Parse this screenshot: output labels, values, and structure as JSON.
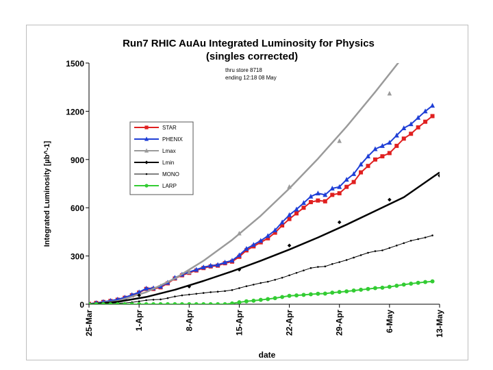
{
  "chart_data": {
    "type": "line",
    "title": "Run7 RHIC AuAu   Integrated Luminosity for Physics",
    "subtitle": "(singles corrected)",
    "annotation": [
      "thru store 8718",
      "ending 12:18  08 May"
    ],
    "xlabel": "date",
    "ylabel": "Integrated Luminosity [µb^-1]",
    "ylim": [
      0,
      1500
    ],
    "yticks": [
      0,
      300,
      600,
      900,
      1200,
      1500
    ],
    "xlim": [
      "2007-03-25",
      "2007-05-13"
    ],
    "xticks": [
      {
        "label": "25-Mar",
        "date": "2007-03-25"
      },
      {
        "label": "1-Apr",
        "date": "2007-04-01"
      },
      {
        "label": "8-Apr",
        "date": "2007-04-08"
      },
      {
        "label": "15-Apr",
        "date": "2007-04-15"
      },
      {
        "label": "22-Apr",
        "date": "2007-04-22"
      },
      {
        "label": "29-Apr",
        "date": "2007-04-29"
      },
      {
        "label": "6-May",
        "date": "2007-05-06"
      },
      {
        "label": "13-May",
        "date": "2007-05-13"
      }
    ],
    "grid": false,
    "legend": "left-middle",
    "series": [
      {
        "name": "STAR",
        "color": "#e02020",
        "marker": "square",
        "lineWidth": 2,
        "points": [
          [
            "2007-03-25",
            2
          ],
          [
            "2007-03-26",
            8
          ],
          [
            "2007-03-27",
            14
          ],
          [
            "2007-03-28",
            20
          ],
          [
            "2007-03-29",
            28
          ],
          [
            "2007-03-30",
            40
          ],
          [
            "2007-03-31",
            55
          ],
          [
            "2007-04-01",
            72
          ],
          [
            "2007-04-02",
            95
          ],
          [
            "2007-04-03",
            95
          ],
          [
            "2007-04-04",
            105
          ],
          [
            "2007-04-05",
            130
          ],
          [
            "2007-04-06",
            160
          ],
          [
            "2007-04-07",
            180
          ],
          [
            "2007-04-08",
            195
          ],
          [
            "2007-04-09",
            210
          ],
          [
            "2007-04-10",
            225
          ],
          [
            "2007-04-11",
            235
          ],
          [
            "2007-04-12",
            240
          ],
          [
            "2007-04-13",
            255
          ],
          [
            "2007-04-14",
            265
          ],
          [
            "2007-04-15",
            295
          ],
          [
            "2007-04-16",
            335
          ],
          [
            "2007-04-17",
            360
          ],
          [
            "2007-04-18",
            385
          ],
          [
            "2007-04-19",
            410
          ],
          [
            "2007-04-20",
            445
          ],
          [
            "2007-04-21",
            490
          ],
          [
            "2007-04-22",
            530
          ],
          [
            "2007-04-23",
            565
          ],
          [
            "2007-04-24",
            600
          ],
          [
            "2007-04-25",
            635
          ],
          [
            "2007-04-26",
            645
          ],
          [
            "2007-04-27",
            640
          ],
          [
            "2007-04-28",
            680
          ],
          [
            "2007-04-29",
            690
          ],
          [
            "2007-04-30",
            730
          ],
          [
            "2007-05-01",
            760
          ],
          [
            "2007-05-02",
            820
          ],
          [
            "2007-05-03",
            860
          ],
          [
            "2007-05-04",
            900
          ],
          [
            "2007-05-05",
            920
          ],
          [
            "2007-05-06",
            940
          ],
          [
            "2007-05-07",
            985
          ],
          [
            "2007-05-08",
            1030
          ],
          [
            "2007-05-09",
            1060
          ],
          [
            "2007-05-10",
            1100
          ],
          [
            "2007-05-11",
            1135
          ],
          [
            "2007-05-12",
            1170
          ]
        ]
      },
      {
        "name": "PHENIX",
        "color": "#1f3fd6",
        "marker": "triangle",
        "lineWidth": 2,
        "points": [
          [
            "2007-03-25",
            2
          ],
          [
            "2007-03-26",
            8
          ],
          [
            "2007-03-27",
            15
          ],
          [
            "2007-03-28",
            22
          ],
          [
            "2007-03-29",
            30
          ],
          [
            "2007-03-30",
            42
          ],
          [
            "2007-03-31",
            58
          ],
          [
            "2007-04-01",
            75
          ],
          [
            "2007-04-02",
            98
          ],
          [
            "2007-04-03",
            100
          ],
          [
            "2007-04-04",
            110
          ],
          [
            "2007-04-05",
            135
          ],
          [
            "2007-04-06",
            165
          ],
          [
            "2007-04-07",
            185
          ],
          [
            "2007-04-08",
            200
          ],
          [
            "2007-04-09",
            215
          ],
          [
            "2007-04-10",
            230
          ],
          [
            "2007-04-11",
            240
          ],
          [
            "2007-04-12",
            245
          ],
          [
            "2007-04-13",
            260
          ],
          [
            "2007-04-14",
            272
          ],
          [
            "2007-04-15",
            305
          ],
          [
            "2007-04-16",
            345
          ],
          [
            "2007-04-17",
            370
          ],
          [
            "2007-04-18",
            395
          ],
          [
            "2007-04-19",
            425
          ],
          [
            "2007-04-20",
            460
          ],
          [
            "2007-04-21",
            510
          ],
          [
            "2007-04-22",
            555
          ],
          [
            "2007-04-23",
            590
          ],
          [
            "2007-04-24",
            630
          ],
          [
            "2007-04-25",
            670
          ],
          [
            "2007-04-26",
            690
          ],
          [
            "2007-04-27",
            680
          ],
          [
            "2007-04-28",
            720
          ],
          [
            "2007-04-29",
            730
          ],
          [
            "2007-04-30",
            775
          ],
          [
            "2007-05-01",
            810
          ],
          [
            "2007-05-02",
            870
          ],
          [
            "2007-05-03",
            920
          ],
          [
            "2007-05-04",
            965
          ],
          [
            "2007-05-05",
            985
          ],
          [
            "2007-05-06",
            1005
          ],
          [
            "2007-05-07",
            1050
          ],
          [
            "2007-05-08",
            1095
          ],
          [
            "2007-05-09",
            1120
          ],
          [
            "2007-05-10",
            1160
          ],
          [
            "2007-05-11",
            1200
          ],
          [
            "2007-05-12",
            1235
          ]
        ]
      },
      {
        "name": "Lmax",
        "color": "#9a9a9a",
        "marker": "triangle",
        "lineWidth": 2.5,
        "marker_points_only": true,
        "curve": [
          [
            "2007-03-25",
            0
          ],
          [
            "2007-03-29",
            20
          ],
          [
            "2007-04-02",
            75
          ],
          [
            "2007-04-06",
            160
          ],
          [
            "2007-04-10",
            270
          ],
          [
            "2007-04-14",
            400
          ],
          [
            "2007-04-18",
            550
          ],
          [
            "2007-04-22",
            720
          ],
          [
            "2007-04-26",
            905
          ],
          [
            "2007-04-30",
            1105
          ],
          [
            "2007-05-04",
            1320
          ],
          [
            "2007-05-08",
            1545
          ]
        ],
        "points": [
          [
            "2007-04-08",
            200
          ],
          [
            "2007-04-15",
            440
          ],
          [
            "2007-04-22",
            730
          ],
          [
            "2007-04-29",
            1015
          ],
          [
            "2007-05-06",
            1310
          ]
        ]
      },
      {
        "name": "Lmin",
        "color": "#000000",
        "marker": "diamond",
        "lineWidth": 2.5,
        "marker_points_only": true,
        "curve": [
          [
            "2007-03-25",
            0
          ],
          [
            "2007-03-29",
            15
          ],
          [
            "2007-04-02",
            45
          ],
          [
            "2007-04-06",
            90
          ],
          [
            "2007-04-10",
            145
          ],
          [
            "2007-04-14",
            205
          ],
          [
            "2007-04-18",
            270
          ],
          [
            "2007-04-22",
            340
          ],
          [
            "2007-04-26",
            415
          ],
          [
            "2007-04-30",
            495
          ],
          [
            "2007-05-04",
            580
          ],
          [
            "2007-05-08",
            665
          ],
          [
            "2007-05-13",
            820
          ]
        ],
        "points": [
          [
            "2007-04-01",
            55
          ],
          [
            "2007-04-08",
            110
          ],
          [
            "2007-04-15",
            215
          ],
          [
            "2007-04-22",
            365
          ],
          [
            "2007-04-29",
            510
          ],
          [
            "2007-05-06",
            650
          ],
          [
            "2007-05-13",
            800
          ]
        ]
      },
      {
        "name": "MONO",
        "color": "#000000",
        "marker": "dot",
        "lineWidth": 1,
        "points": [
          [
            "2007-03-25",
            0
          ],
          [
            "2007-03-26",
            1
          ],
          [
            "2007-03-27",
            2
          ],
          [
            "2007-03-28",
            4
          ],
          [
            "2007-03-29",
            6
          ],
          [
            "2007-03-30",
            8
          ],
          [
            "2007-03-31",
            12
          ],
          [
            "2007-04-01",
            18
          ],
          [
            "2007-04-02",
            25
          ],
          [
            "2007-04-03",
            28
          ],
          [
            "2007-04-04",
            30
          ],
          [
            "2007-04-05",
            38
          ],
          [
            "2007-04-06",
            48
          ],
          [
            "2007-04-07",
            55
          ],
          [
            "2007-04-08",
            60
          ],
          [
            "2007-04-09",
            65
          ],
          [
            "2007-04-10",
            70
          ],
          [
            "2007-04-11",
            75
          ],
          [
            "2007-04-12",
            78
          ],
          [
            "2007-04-13",
            82
          ],
          [
            "2007-04-14",
            88
          ],
          [
            "2007-04-15",
            100
          ],
          [
            "2007-04-16",
            112
          ],
          [
            "2007-04-17",
            122
          ],
          [
            "2007-04-18",
            132
          ],
          [
            "2007-04-19",
            140
          ],
          [
            "2007-04-20",
            152
          ],
          [
            "2007-04-21",
            165
          ],
          [
            "2007-04-22",
            180
          ],
          [
            "2007-04-23",
            195
          ],
          [
            "2007-04-24",
            210
          ],
          [
            "2007-04-25",
            225
          ],
          [
            "2007-04-26",
            232
          ],
          [
            "2007-04-27",
            235
          ],
          [
            "2007-04-28",
            250
          ],
          [
            "2007-04-29",
            262
          ],
          [
            "2007-04-30",
            275
          ],
          [
            "2007-05-01",
            290
          ],
          [
            "2007-05-02",
            305
          ],
          [
            "2007-05-03",
            320
          ],
          [
            "2007-05-04",
            330
          ],
          [
            "2007-05-05",
            335
          ],
          [
            "2007-05-06",
            350
          ],
          [
            "2007-05-07",
            365
          ],
          [
            "2007-05-08",
            380
          ],
          [
            "2007-05-09",
            395
          ],
          [
            "2007-05-10",
            405
          ],
          [
            "2007-05-11",
            415
          ],
          [
            "2007-05-12",
            428
          ]
        ]
      },
      {
        "name": "LARP",
        "color": "#33cc33",
        "marker": "circle",
        "lineWidth": 2,
        "points": [
          [
            "2007-03-25",
            0
          ],
          [
            "2007-03-26",
            0
          ],
          [
            "2007-03-27",
            0
          ],
          [
            "2007-03-28",
            0
          ],
          [
            "2007-03-29",
            0
          ],
          [
            "2007-03-30",
            0
          ],
          [
            "2007-03-31",
            0
          ],
          [
            "2007-04-01",
            0
          ],
          [
            "2007-04-02",
            0
          ],
          [
            "2007-04-03",
            0
          ],
          [
            "2007-04-04",
            0
          ],
          [
            "2007-04-05",
            0
          ],
          [
            "2007-04-06",
            0
          ],
          [
            "2007-04-07",
            0
          ],
          [
            "2007-04-08",
            0
          ],
          [
            "2007-04-09",
            0
          ],
          [
            "2007-04-10",
            0
          ],
          [
            "2007-04-11",
            0
          ],
          [
            "2007-04-12",
            0
          ],
          [
            "2007-04-13",
            0
          ],
          [
            "2007-04-14",
            5
          ],
          [
            "2007-04-15",
            12
          ],
          [
            "2007-04-16",
            18
          ],
          [
            "2007-04-17",
            22
          ],
          [
            "2007-04-18",
            27
          ],
          [
            "2007-04-19",
            32
          ],
          [
            "2007-04-20",
            38
          ],
          [
            "2007-04-21",
            45
          ],
          [
            "2007-04-22",
            52
          ],
          [
            "2007-04-23",
            55
          ],
          [
            "2007-04-24",
            58
          ],
          [
            "2007-04-25",
            62
          ],
          [
            "2007-04-26",
            65
          ],
          [
            "2007-04-27",
            66
          ],
          [
            "2007-04-28",
            72
          ],
          [
            "2007-04-29",
            76
          ],
          [
            "2007-04-30",
            80
          ],
          [
            "2007-05-01",
            85
          ],
          [
            "2007-05-02",
            90
          ],
          [
            "2007-05-03",
            95
          ],
          [
            "2007-05-04",
            100
          ],
          [
            "2007-05-05",
            103
          ],
          [
            "2007-05-06",
            108
          ],
          [
            "2007-05-07",
            115
          ],
          [
            "2007-05-08",
            122
          ],
          [
            "2007-05-09",
            128
          ],
          [
            "2007-05-10",
            133
          ],
          [
            "2007-05-11",
            138
          ],
          [
            "2007-05-12",
            142
          ]
        ]
      }
    ]
  }
}
